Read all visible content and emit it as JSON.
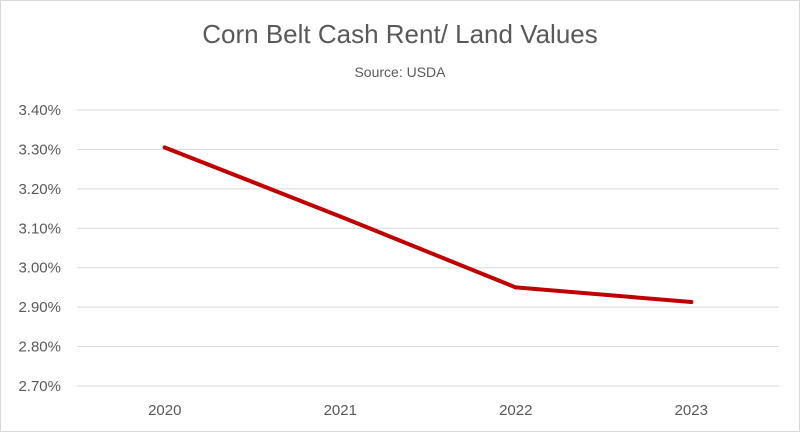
{
  "chart_data": {
    "type": "line",
    "title": "Corn Belt Cash Rent/ Land Values",
    "subtitle": "Source: USDA",
    "categories": [
      "2020",
      "2021",
      "2022",
      "2023"
    ],
    "series": [
      {
        "values": [
          3.305,
          3.13,
          2.95,
          2.913
        ],
        "color": "#c00000"
      }
    ],
    "ylim": [
      2.7,
      3.4
    ],
    "yticks": [
      3.4,
      3.3,
      3.2,
      3.1,
      3.0,
      2.9,
      2.8,
      2.7
    ],
    "ytick_labels": [
      "3.40%",
      "3.30%",
      "3.20%",
      "3.10%",
      "3.00%",
      "2.90%",
      "2.80%",
      "2.70%"
    ],
    "y_unit": "%",
    "grid": true,
    "legend": "none",
    "colors": {
      "gridline": "#d9d9d9",
      "text": "#595959",
      "line": "#c00000"
    }
  }
}
